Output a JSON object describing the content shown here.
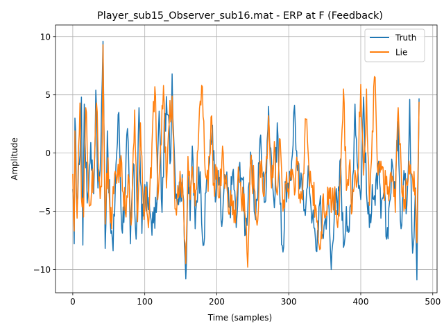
{
  "colors": {
    "truth": "#1f77b4",
    "lie": "#ff7f0e"
  },
  "chart_data": {
    "type": "line",
    "title": "Player_sub15_Observer_sub16.mat - ERP at F (Feedback)",
    "xlabel": "Time (samples)",
    "ylabel": "Amplitude",
    "xlim": [
      -24,
      506
    ],
    "ylim": [
      -12,
      11
    ],
    "xticks": [
      0,
      100,
      200,
      300,
      400,
      500
    ],
    "xtick_labels": [
      "0",
      "100",
      "200",
      "300",
      "400",
      "500"
    ],
    "yticks": [
      -10,
      -5,
      0,
      5,
      10
    ],
    "ytick_labels": [
      "−10",
      "−5",
      "0",
      "5",
      "10"
    ],
    "grid": true,
    "legend": "top-right",
    "n_samples": 482,
    "series": [
      {
        "name": "Truth",
        "key": "truth",
        "anchors": [
          [
            0,
            -3.1
          ],
          [
            2,
            -7.8
          ],
          [
            3,
            3.0
          ],
          [
            6,
            -4.6
          ],
          [
            9,
            -1.0
          ],
          [
            12,
            4.8
          ],
          [
            14,
            -7.9
          ],
          [
            16,
            4.2
          ],
          [
            20,
            -4.3
          ],
          [
            25,
            0.9
          ],
          [
            29,
            -3.5
          ],
          [
            32,
            5.4
          ],
          [
            35,
            -3.0
          ],
          [
            38,
            -1.5
          ],
          [
            42,
            9.6
          ],
          [
            45,
            -8.2
          ],
          [
            48,
            1.9
          ],
          [
            52,
            -5.8
          ],
          [
            56,
            -8.4
          ],
          [
            60,
            -1.0
          ],
          [
            64,
            3.5
          ],
          [
            68,
            -6.5
          ],
          [
            72,
            -4.0
          ],
          [
            76,
            2.1
          ],
          [
            80,
            -7.8
          ],
          [
            84,
            -0.9
          ],
          [
            88,
            -7.4
          ],
          [
            92,
            3.9
          ],
          [
            96,
            -6.9
          ],
          [
            100,
            -2.7
          ],
          [
            104,
            -4.3
          ],
          [
            108,
            -5.4
          ],
          [
            112,
            -6.0
          ],
          [
            116,
            -5.1
          ],
          [
            120,
            3.6
          ],
          [
            124,
            -5.1
          ],
          [
            128,
            3.4
          ],
          [
            132,
            3.3
          ],
          [
            136,
            -0.6
          ],
          [
            138,
            6.8
          ],
          [
            142,
            -1.8
          ],
          [
            146,
            -4.0
          ],
          [
            150,
            -2.5
          ],
          [
            154,
            -4.1
          ],
          [
            157,
            -10.8
          ],
          [
            160,
            -1.7
          ],
          [
            163,
            -5.8
          ],
          [
            166,
            0.6
          ],
          [
            170,
            -6.5
          ],
          [
            175,
            -1.2
          ],
          [
            178,
            -3.4
          ],
          [
            182,
            -7.9
          ],
          [
            186,
            -2.1
          ],
          [
            190,
            -0.8
          ],
          [
            194,
            2.4
          ],
          [
            198,
            -4.2
          ],
          [
            202,
            -1.5
          ],
          [
            207,
            -6.3
          ],
          [
            212,
            -2.2
          ],
          [
            218,
            -4.7
          ],
          [
            223,
            -1.4
          ],
          [
            227,
            -6.4
          ],
          [
            232,
            -0.8
          ],
          [
            236,
            -2.3
          ],
          [
            240,
            -7.0
          ],
          [
            244,
            -3.0
          ],
          [
            248,
            -0.9
          ],
          [
            252,
            -5.0
          ],
          [
            256,
            -4.1
          ],
          [
            260,
            1.2
          ],
          [
            264,
            -2.0
          ],
          [
            268,
            -4.1
          ],
          [
            272,
            4.0
          ],
          [
            276,
            -0.5
          ],
          [
            280,
            -4.7
          ],
          [
            284,
            2.6
          ],
          [
            288,
            -4.4
          ],
          [
            292,
            -8.5
          ],
          [
            296,
            -2.5
          ],
          [
            300,
            -3.9
          ],
          [
            304,
            -0.7
          ],
          [
            308,
            4.1
          ],
          [
            312,
            -1.5
          ],
          [
            316,
            -2.9
          ],
          [
            320,
            -3.2
          ],
          [
            324,
            -4.3
          ],
          [
            328,
            -1.8
          ],
          [
            333,
            -5.5
          ],
          [
            338,
            -8.4
          ],
          [
            343,
            -4.3
          ],
          [
            347,
            -7.0
          ],
          [
            351,
            -5.6
          ],
          [
            355,
            -3.9
          ],
          [
            359,
            -10.0
          ],
          [
            364,
            -3.2
          ],
          [
            368,
            -5.3
          ],
          [
            372,
            -0.5
          ],
          [
            376,
            -8.1
          ],
          [
            380,
            -4.6
          ],
          [
            384,
            -6.7
          ],
          [
            388,
            -3.9
          ],
          [
            392,
            4.2
          ],
          [
            396,
            -1.4
          ],
          [
            400,
            -4.0
          ],
          [
            404,
            4.8
          ],
          [
            408,
            -3.5
          ],
          [
            412,
            -6.4
          ],
          [
            416,
            -2.7
          ],
          [
            420,
            -4.5
          ],
          [
            424,
            -1.0
          ],
          [
            428,
            -5.6
          ],
          [
            432,
            -3.4
          ],
          [
            436,
            -7.4
          ],
          [
            440,
            -4.2
          ],
          [
            444,
            -1.0
          ],
          [
            448,
            -3.5
          ],
          [
            452,
            2.7
          ],
          [
            456,
            -6.5
          ],
          [
            460,
            -1.5
          ],
          [
            464,
            -4.5
          ],
          [
            468,
            4.6
          ],
          [
            472,
            -8.6
          ],
          [
            476,
            -3.0
          ],
          [
            478,
            -10.9
          ],
          [
            481,
            4.7
          ]
        ]
      },
      {
        "name": "Lie",
        "key": "lie",
        "anchors": [
          [
            0,
            -1.8
          ],
          [
            2,
            -6.7
          ],
          [
            3,
            1.9
          ],
          [
            6,
            -5.6
          ],
          [
            10,
            4.3
          ],
          [
            12,
            -3.9
          ],
          [
            15,
            -5.5
          ],
          [
            18,
            3.9
          ],
          [
            22,
            -3.6
          ],
          [
            26,
            -3.3
          ],
          [
            30,
            -1.0
          ],
          [
            33,
            4.3
          ],
          [
            36,
            -2.4
          ],
          [
            40,
            -2.9
          ],
          [
            42,
            9.3
          ],
          [
            45,
            -6.1
          ],
          [
            49,
            -0.4
          ],
          [
            52,
            -6.0
          ],
          [
            57,
            -3.5
          ],
          [
            61,
            -2.6
          ],
          [
            65,
            -0.5
          ],
          [
            70,
            -3.4
          ],
          [
            74,
            -5.5
          ],
          [
            78,
            -2.2
          ],
          [
            82,
            -5.5
          ],
          [
            86,
            3.7
          ],
          [
            90,
            -5.9
          ],
          [
            94,
            2.6
          ],
          [
            98,
            -4.6
          ],
          [
            102,
            -2.9
          ],
          [
            106,
            -5.5
          ],
          [
            110,
            0.8
          ],
          [
            114,
            5.7
          ],
          [
            118,
            -4.0
          ],
          [
            122,
            0.6
          ],
          [
            126,
            5.8
          ],
          [
            130,
            -3.0
          ],
          [
            134,
            2.6
          ],
          [
            138,
            4.9
          ],
          [
            142,
            -4.8
          ],
          [
            146,
            -2.8
          ],
          [
            150,
            -2.7
          ],
          [
            154,
            -4.7
          ],
          [
            157,
            -9.5
          ],
          [
            160,
            -0.3
          ],
          [
            163,
            -4.0
          ],
          [
            167,
            -2.3
          ],
          [
            171,
            -3.2
          ],
          [
            175,
            2.0
          ],
          [
            180,
            5.7
          ],
          [
            184,
            -1.7
          ],
          [
            188,
            -3.3
          ],
          [
            192,
            3.1
          ],
          [
            196,
            -2.6
          ],
          [
            200,
            -1.2
          ],
          [
            204,
            -3.8
          ],
          [
            208,
            0.6
          ],
          [
            212,
            -2.5
          ],
          [
            216,
            -5.0
          ],
          [
            221,
            -3.6
          ],
          [
            226,
            -6.0
          ],
          [
            230,
            -1.2
          ],
          [
            234,
            -4.0
          ],
          [
            238,
            -3.5
          ],
          [
            243,
            -9.8
          ],
          [
            247,
            -0.6
          ],
          [
            252,
            -3.0
          ],
          [
            256,
            -6.2
          ],
          [
            260,
            -0.7
          ],
          [
            264,
            -3.3
          ],
          [
            268,
            -1.6
          ],
          [
            272,
            3.2
          ],
          [
            276,
            -3.0
          ],
          [
            280,
            1.0
          ],
          [
            284,
            -3.6
          ],
          [
            288,
            1.2
          ],
          [
            292,
            -5.0
          ],
          [
            296,
            -2.6
          ],
          [
            300,
            -3.9
          ],
          [
            304,
            -2.3
          ],
          [
            308,
            -3.6
          ],
          [
            312,
            -1.0
          ],
          [
            316,
            -4.3
          ],
          [
            320,
            -1.8
          ],
          [
            324,
            2.9
          ],
          [
            328,
            -1.2
          ],
          [
            333,
            -2.8
          ],
          [
            338,
            -4.8
          ],
          [
            344,
            -8.2
          ],
          [
            348,
            -3.5
          ],
          [
            352,
            -5.0
          ],
          [
            356,
            -3.0
          ],
          [
            360,
            -4.2
          ],
          [
            364,
            -2.9
          ],
          [
            368,
            -6.4
          ],
          [
            372,
            -1.8
          ],
          [
            376,
            5.5
          ],
          [
            380,
            -3.2
          ],
          [
            384,
            -1.1
          ],
          [
            388,
            -5.0
          ],
          [
            392,
            -1.5
          ],
          [
            396,
            -1.6
          ],
          [
            400,
            5.9
          ],
          [
            404,
            -1.9
          ],
          [
            408,
            5.5
          ],
          [
            412,
            -4.5
          ],
          [
            416,
            1.9
          ],
          [
            420,
            6.5
          ],
          [
            424,
            -1.9
          ],
          [
            428,
            -0.7
          ],
          [
            432,
            -3.2
          ],
          [
            436,
            -2.0
          ],
          [
            440,
            -3.0
          ],
          [
            444,
            -2.0
          ],
          [
            448,
            -5.1
          ],
          [
            452,
            3.9
          ],
          [
            456,
            -1.0
          ],
          [
            460,
            -5.0
          ],
          [
            464,
            -2.6
          ],
          [
            468,
            -1.8
          ],
          [
            472,
            -2.2
          ],
          [
            476,
            -3.1
          ],
          [
            478,
            -7.7
          ],
          [
            481,
            4.4
          ]
        ]
      }
    ]
  }
}
